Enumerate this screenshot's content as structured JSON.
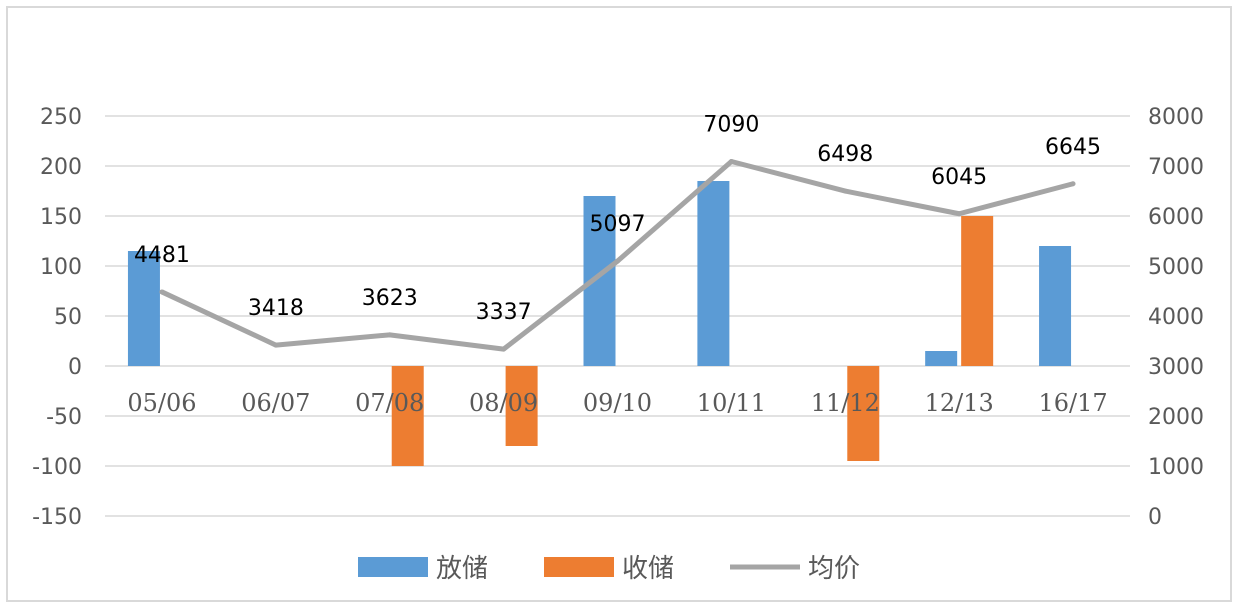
{
  "chart_data": {
    "type": "bar",
    "categories": [
      "05/06",
      "06/07",
      "07/08",
      "08/09",
      "09/10",
      "10/11",
      "11/12",
      "12/13",
      "16/17"
    ],
    "series": [
      {
        "name": "放储",
        "type": "bar",
        "axis": "left",
        "color": "#5b9bd5",
        "values": [
          115,
          0,
          0,
          0,
          170,
          185,
          0,
          15,
          120
        ]
      },
      {
        "name": "收储",
        "type": "bar",
        "axis": "left",
        "color": "#ed7d31",
        "values": [
          0,
          0,
          -100,
          -80,
          0,
          0,
          -95,
          150,
          0
        ]
      },
      {
        "name": "均价",
        "type": "line",
        "axis": "right",
        "color": "#a5a5a5",
        "values": [
          4481,
          3418,
          3623,
          3337,
          5097,
          7090,
          6498,
          6045,
          6645
        ]
      }
    ],
    "y_left": {
      "ylim": [
        -150,
        250
      ],
      "ticks": [
        "250",
        "200",
        "150",
        "100",
        "50",
        "0",
        "-50",
        "-100",
        "-150"
      ]
    },
    "y_right": {
      "ylim": [
        0,
        8000
      ],
      "ticks": [
        "8000",
        "7000",
        "6000",
        "5000",
        "4000",
        "3000",
        "2000",
        "1000",
        "0"
      ]
    },
    "data_labels": [
      "4481",
      "3418",
      "3623",
      "3337",
      "5097",
      "7090",
      "6498",
      "6045",
      "6645"
    ],
    "grid": true,
    "legend_position": "bottom",
    "title": "",
    "xlabel": "",
    "ylabel": ""
  }
}
